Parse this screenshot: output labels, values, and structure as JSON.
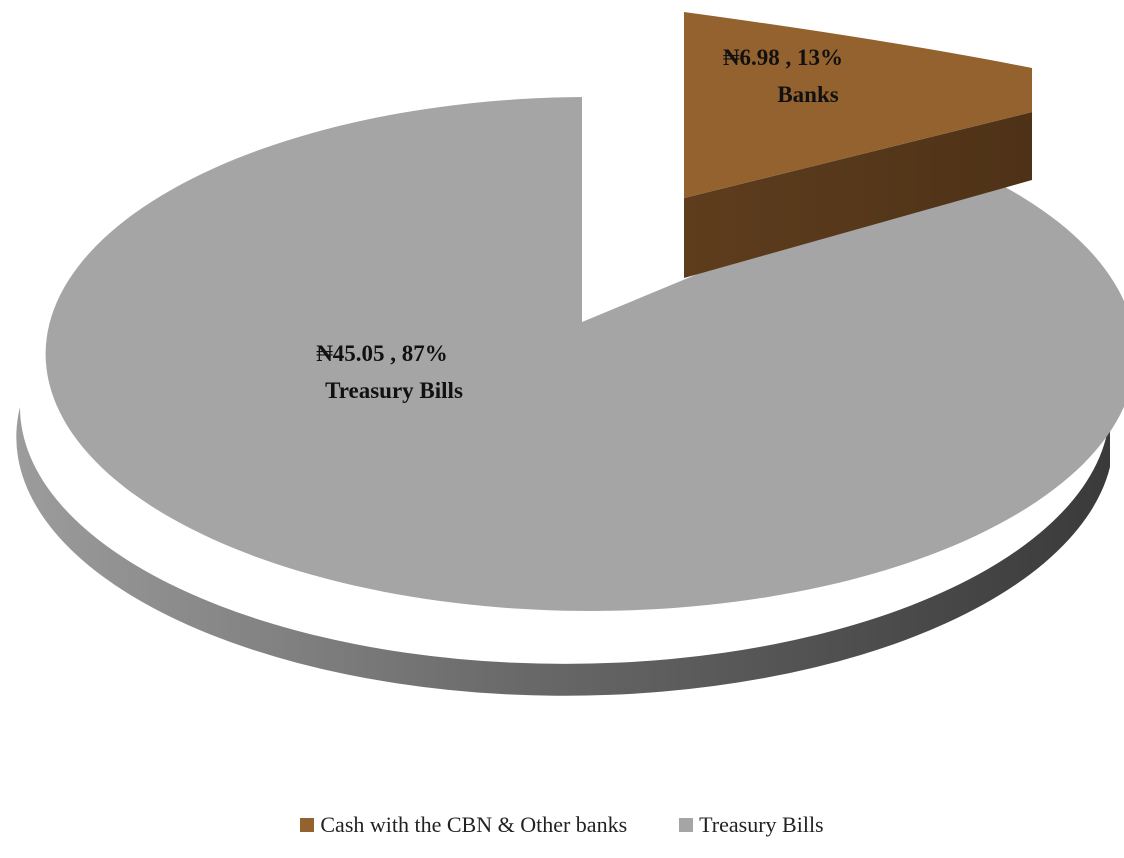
{
  "chart_data": {
    "type": "pie",
    "style": "3d-exploded",
    "legend_position": "bottom",
    "slices": [
      {
        "name": "Cash with the CBN & Other banks",
        "value": 6.98,
        "percent": 13,
        "label_value": "₦6.98 , 13%",
        "label_name": "Banks",
        "color": "#94622f",
        "side_color": "#5a3a1c",
        "exploded": true
      },
      {
        "name": "Treasury Bills",
        "value": 45.05,
        "percent": 87,
        "label_value": "₦45.05 , 87%",
        "label_name": "Treasury Bills",
        "color": "#a5a5a5",
        "side_color": "#6f6f6f",
        "exploded": false
      }
    ]
  }
}
